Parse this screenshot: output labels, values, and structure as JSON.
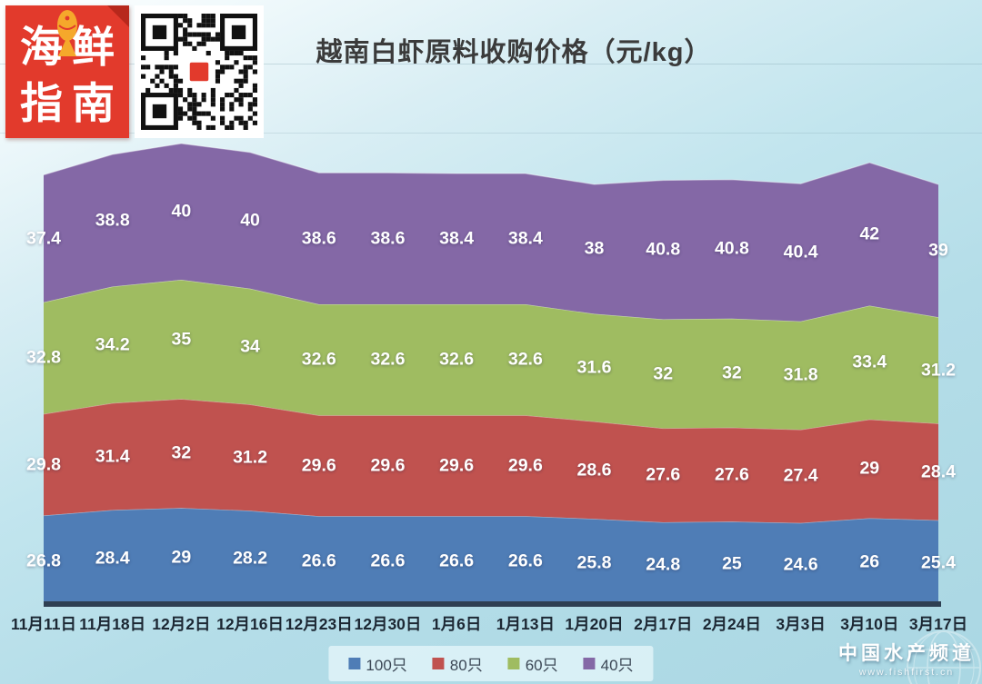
{
  "header": {
    "logo": {
      "row1": "海鲜",
      "row2": "指南",
      "bg_color": "#e23a2c",
      "fish_color": "#f5a82b"
    },
    "title": "越南白虾原料收购价格（元/kg）"
  },
  "chart_data": {
    "type": "area",
    "stacked": true,
    "title": "越南白虾原料收购价格（元/kg）",
    "categories": [
      "11月11日",
      "11月18日",
      "12月2日",
      "12月16日",
      "12月23日",
      "12月30日",
      "1月6日",
      "1月13日",
      "1月20日",
      "2月17日",
      "2月24日",
      "3月3日",
      "3月10日",
      "3月17日"
    ],
    "series": [
      {
        "name": "100只",
        "color": "#4f7db6",
        "values": [
          26.8,
          28.4,
          29,
          28.2,
          26.6,
          26.6,
          26.6,
          26.6,
          25.8,
          24.8,
          25,
          24.6,
          26,
          25.4
        ]
      },
      {
        "name": "80只",
        "color": "#c0524f",
        "values": [
          29.8,
          31.4,
          32,
          31.2,
          29.6,
          29.6,
          29.6,
          29.6,
          28.6,
          27.6,
          27.6,
          27.4,
          29,
          28.4
        ]
      },
      {
        "name": "60只",
        "color": "#9fbc61",
        "values": [
          32.8,
          34.2,
          35,
          34,
          32.6,
          32.6,
          32.6,
          32.6,
          31.6,
          32,
          32,
          31.8,
          33.4,
          31.2
        ]
      },
      {
        "name": "40只",
        "color": "#8468a6",
        "values": [
          37.4,
          38.8,
          40,
          40,
          38.6,
          38.6,
          38.4,
          38.4,
          38,
          40.8,
          40.8,
          40.4,
          42,
          39
        ]
      }
    ],
    "ylim": [
      0,
      140
    ],
    "grid": false,
    "legend_position": "bottom",
    "label_color": "#ffffff",
    "axis_line_color": "#2e3f52"
  },
  "footer": {
    "watermark_title": "中国水产频道",
    "watermark_url": "www.fishfirst.cn"
  }
}
